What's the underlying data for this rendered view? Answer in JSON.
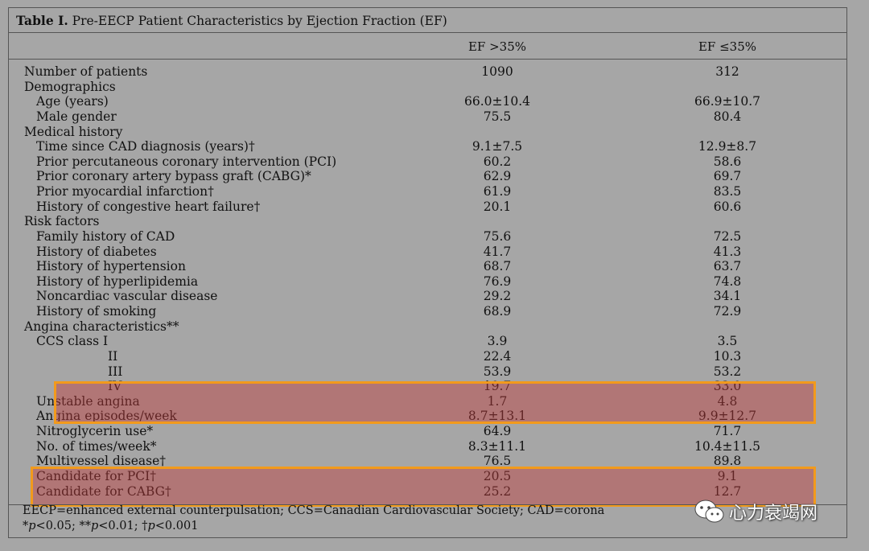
{
  "table": {
    "title_bold": "Table I.",
    "title_rest": " Pre-EECP Patient Characteristics by Ejection Fraction (EF)",
    "col_headers": [
      "EF >35%",
      "EF ≤35%"
    ],
    "rows": [
      {
        "label": "Number of patients",
        "indent": 0,
        "v1": "1090",
        "v2": "312"
      },
      {
        "label": "Demographics",
        "indent": 0,
        "v1": "",
        "v2": ""
      },
      {
        "label": "Age (years)",
        "indent": 1,
        "v1": "66.0±10.4",
        "v2": "66.9±10.7"
      },
      {
        "label": "Male gender",
        "indent": 1,
        "v1": "75.5",
        "v2": "80.4"
      },
      {
        "label": "Medical history",
        "indent": 0,
        "v1": "",
        "v2": ""
      },
      {
        "label": "Time since CAD diagnosis (years)†",
        "indent": 1,
        "v1": "9.1±7.5",
        "v2": "12.9±8.7"
      },
      {
        "label": "Prior percutaneous coronary intervention (PCI)",
        "indent": 1,
        "v1": "60.2",
        "v2": "58.6"
      },
      {
        "label": "Prior coronary artery bypass graft (CABG)*",
        "indent": 1,
        "v1": "62.9",
        "v2": "69.7"
      },
      {
        "label": "Prior myocardial infarction†",
        "indent": 1,
        "v1": "61.9",
        "v2": "83.5"
      },
      {
        "label": "History of congestive heart failure†",
        "indent": 1,
        "v1": "20.1",
        "v2": "60.6"
      },
      {
        "label": "Risk factors",
        "indent": 0,
        "v1": "",
        "v2": ""
      },
      {
        "label": "Family history of CAD",
        "indent": 1,
        "v1": "75.6",
        "v2": "72.5"
      },
      {
        "label": "History of diabetes",
        "indent": 1,
        "v1": "41.7",
        "v2": "41.3"
      },
      {
        "label": "History of hypertension",
        "indent": 1,
        "v1": "68.7",
        "v2": "63.7"
      },
      {
        "label": "History of hyperlipidemia",
        "indent": 1,
        "v1": "76.9",
        "v2": "74.8"
      },
      {
        "label": "Noncardiac vascular disease",
        "indent": 1,
        "v1": "29.2",
        "v2": "34.1"
      },
      {
        "label": "History of smoking",
        "indent": 1,
        "v1": "68.9",
        "v2": "72.9"
      },
      {
        "label": "Angina characteristics**",
        "indent": 0,
        "v1": "",
        "v2": ""
      },
      {
        "label": "CCS class I",
        "indent": 1,
        "v1": "3.9",
        "v2": "3.5"
      },
      {
        "label": "II",
        "indent": 2,
        "v1": "22.4",
        "v2": "10.3"
      },
      {
        "label": "III",
        "indent": 2,
        "v1": "53.9",
        "v2": "53.2"
      },
      {
        "label": "IV",
        "indent": 2,
        "v1": "19.7",
        "v2": "33.0"
      },
      {
        "label": "Unstable angina",
        "indent": 1,
        "v1": "1.7",
        "v2": "4.8"
      },
      {
        "label": "Angina episodes/week",
        "indent": 1,
        "v1": "8.7±13.1",
        "v2": "9.9±12.7"
      },
      {
        "label": "Nitroglycerin use*",
        "indent": 1,
        "v1": "64.9",
        "v2": "71.7"
      },
      {
        "label": "No. of times/week*",
        "indent": 1,
        "v1": "8.3±11.1",
        "v2": "10.4±11.5"
      },
      {
        "label": "Multivessel disease†",
        "indent": 1,
        "v1": "76.5",
        "v2": "89.8"
      },
      {
        "label": "Candidate for PCI†",
        "indent": 1,
        "v1": "20.5",
        "v2": "9.1"
      },
      {
        "label": "Candidate for CABG†",
        "indent": 1,
        "v1": "25.2",
        "v2": "12.7"
      }
    ],
    "footnote_1": "EECP=enhanced external counterpulsation; CCS=Canadian Cardiovascular Society; CAD=corona",
    "footnote_2": "*p<0.05; **p<0.01; †p<0.001"
  },
  "highlights": {
    "color_border": "#f29a1c",
    "color_fill": "#be3c3c"
  },
  "watermark": {
    "text": "心力衰竭网",
    "icon": "wechat-logo-icon"
  }
}
